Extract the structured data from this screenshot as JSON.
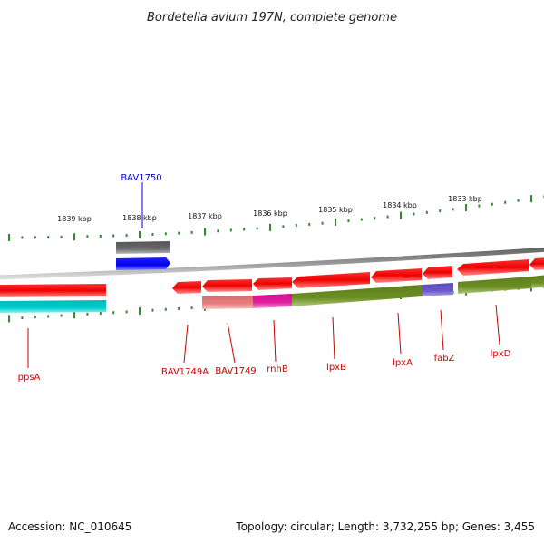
{
  "title": "Bordetella avium 197N, complete genome",
  "footer": {
    "accession": "Accession: NC_010645",
    "summary": "Topology: circular; Length: 3,732,255 bp; Genes: 3,455"
  },
  "scale": {
    "ticks": [
      "1839 kbp",
      "1838 kbp",
      "1837 kbp",
      "1836 kbp",
      "1835 kbp",
      "1834 kbp",
      "1833 kbp"
    ]
  },
  "genes": [
    {
      "id": "ppsA",
      "label": "ppsA",
      "color": "#cc0000"
    },
    {
      "id": "BAV1749A",
      "label": "BAV1749A",
      "color": "#cc0000"
    },
    {
      "id": "BAV1749",
      "label": "BAV1749",
      "color": "#cc0000"
    },
    {
      "id": "rnhB",
      "label": "rnhB",
      "color": "#cc0000"
    },
    {
      "id": "lpxB",
      "label": "lpxB",
      "color": "#cc0000"
    },
    {
      "id": "lpxA",
      "label": "lpxA",
      "color": "#cc0000"
    },
    {
      "id": "fabZ",
      "label": "fabZ",
      "color": "#cc0000"
    },
    {
      "id": "lpxD",
      "label": "lpxD",
      "color": "#cc0000"
    },
    {
      "id": "BAV1750",
      "label": "BAV1750",
      "color": "#0000cc"
    }
  ],
  "colors": {
    "cds_red": "#ee0000",
    "rrna_blue": "#0000ee",
    "gray_feature": "#666666",
    "cyan_feature": "#00cccc",
    "olive_feature": "#6b8e23",
    "pink_feature": "#e88080",
    "magenta_feature": "#e020a0",
    "purple_feature": "#6a5acd",
    "tick_green": "#2e8b2e",
    "backbone": "#888888"
  }
}
